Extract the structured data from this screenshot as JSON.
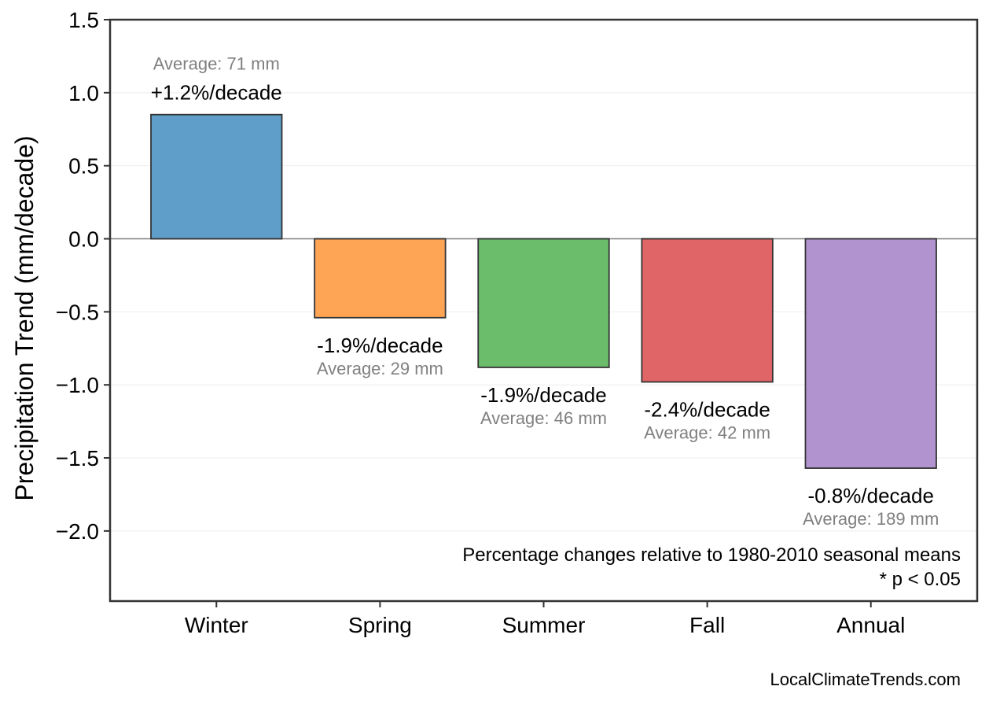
{
  "chart_data": {
    "type": "bar",
    "categories": [
      "Winter",
      "Spring",
      "Summer",
      "Fall",
      "Annual"
    ],
    "values": [
      0.85,
      -0.54,
      -0.88,
      -0.98,
      -1.57
    ],
    "colors": [
      "#5f9ec9",
      "#fda455",
      "#6bbd6b",
      "#e06567",
      "#b194cf"
    ],
    "trend_labels": [
      "+1.2%/decade",
      "-1.9%/decade",
      "-1.9%/decade",
      "-2.4%/decade",
      "-0.8%/decade"
    ],
    "average_labels": [
      "Average: 71 mm",
      "Average: 29 mm",
      "Average: 46 mm",
      "Average: 42 mm",
      "Average: 189 mm"
    ],
    "ylabel": "Precipitation Trend (mm/decade)",
    "xlabel": "",
    "ylim": [
      -2.48,
      1.5
    ],
    "yticks": [
      1.5,
      1.0,
      0.5,
      0.0,
      -0.5,
      -1.0,
      -1.5,
      -2.0
    ],
    "ytick_labels": [
      "1.5",
      "1.0",
      "0.5",
      "0.0",
      "−0.5",
      "−1.0",
      "−1.5",
      "−2.0"
    ],
    "grid": true,
    "zero_line": true,
    "annotations": [
      "Percentage changes relative to 1980-2010 seasonal means",
      "* p < 0.05"
    ],
    "credit": "LocalClimateTrends.com"
  }
}
